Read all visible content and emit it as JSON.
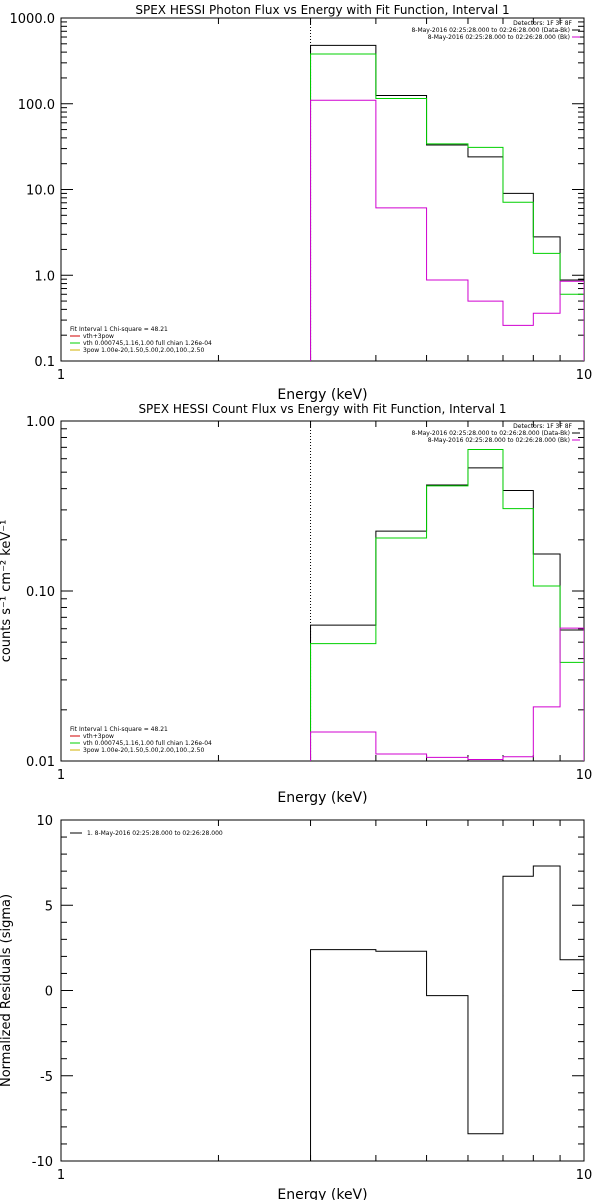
{
  "chart_data": [
    {
      "type": "line",
      "title": "SPEX HESSI Photon Flux vs Energy with Fit Function, Interval 1",
      "xlabel": "Energy (keV)",
      "ylabel": "",
      "xscale": "log",
      "yscale": "log",
      "xlim": [
        1,
        10
      ],
      "ylim": [
        0.1,
        1000
      ],
      "xticks": [
        "1",
        "10"
      ],
      "yticks": [
        "1000.0",
        "100.0",
        "10.0",
        "1.0",
        "0.1"
      ],
      "edges": [
        3,
        4,
        5,
        6,
        7,
        8,
        9,
        10
      ],
      "top_legend": {
        "header": "Detectors: 1F 3F 8F",
        "entries": [
          {
            "label": "8-May-2016 02:25:28.000 to 02:26:28.000 (Data-Bk)",
            "color": "#000000"
          },
          {
            "label": "8-May-2016 02:25:28.000 to 02:26:28.000 (Bk)",
            "color": "#d000d0"
          }
        ]
      },
      "fit_legend": {
        "header": "Fit Interval  1   Chi-square = 48.21",
        "entries": [
          {
            "label": "vth+3pow",
            "color": "#d00000"
          },
          {
            "label": "vth 0.000745,1.16,1.00   full chian 1.26e-04",
            "color": "#00d000"
          },
          {
            "label": "3pow 1.00e-20,1.50,5.00,2.00,100.,2.50",
            "color": "#d0b000"
          }
        ]
      },
      "vline_x": 3,
      "series": [
        {
          "color": "#000000",
          "values": [
            480,
            125,
            33,
            24,
            9,
            2.8,
            0.88
          ]
        },
        {
          "color": "#00d000",
          "values": [
            380,
            115,
            34,
            31,
            7.1,
            1.8,
            0.6
          ]
        },
        {
          "color": "#d000d0",
          "values": [
            110,
            6.1,
            0.88,
            0.5,
            0.26,
            0.36,
            0.85
          ]
        }
      ]
    },
    {
      "type": "line",
      "title": "SPEX HESSI Count Flux vs Energy with Fit Function, Interval 1",
      "xlabel": "Energy (keV)",
      "ylabel": "counts s⁻¹ cm⁻² keV⁻¹",
      "xscale": "log",
      "yscale": "log",
      "xlim": [
        1,
        10
      ],
      "ylim": [
        0.01,
        1
      ],
      "xticks": [
        "1",
        "10"
      ],
      "yticks": [
        "1.00",
        "0.10",
        "0.01"
      ],
      "edges": [
        3,
        4,
        5,
        6,
        7,
        8,
        9,
        10
      ],
      "top_legend": {
        "header": "Detectors: 1F 3F 8F",
        "entries": [
          {
            "label": "8-May-2016 02:25:28.000 to 02:26:28.000 (Data-Bk)",
            "color": "#000000"
          },
          {
            "label": "8-May-2016 02:25:28.000 to 02:26:28.000 (Bk)",
            "color": "#d000d0"
          }
        ]
      },
      "fit_legend": {
        "header": "Fit Interval  1   Chi-square = 48.21",
        "entries": [
          {
            "label": "vth+3pow",
            "color": "#d00000"
          },
          {
            "label": "vth 0.000745,1.16,1.00   full chian 1.26e-04",
            "color": "#00d000"
          },
          {
            "label": "3pow 1.00e-20,1.50,5.00,2.00,100.,2.50",
            "color": "#d0b000"
          }
        ]
      },
      "vline_x": 3,
      "series": [
        {
          "color": "#000000",
          "values": [
            0.063,
            0.225,
            0.42,
            0.53,
            0.39,
            0.165,
            0.059
          ]
        },
        {
          "color": "#00d000",
          "values": [
            0.049,
            0.205,
            0.415,
            0.68,
            0.305,
            0.107,
            0.038
          ]
        },
        {
          "color": "#d000d0",
          "values": [
            0.0148,
            0.011,
            0.0105,
            0.0102,
            0.0106,
            0.0208,
            0.0605
          ]
        }
      ]
    },
    {
      "type": "line",
      "title": "",
      "xlabel": "Energy (keV)",
      "ylabel": "Normalized Residuals (sigma)",
      "xscale": "log",
      "yscale": "linear",
      "xlim": [
        1,
        10
      ],
      "ylim": [
        -10,
        10
      ],
      "xticks": [
        "1",
        "10"
      ],
      "yticks": [
        "10",
        "5",
        "0",
        "-5",
        "-10"
      ],
      "edges": [
        3,
        4,
        5,
        6,
        7,
        8,
        9,
        10
      ],
      "top_legend": {
        "header": "",
        "entries": [
          {
            "label": "1.  8-May-2016 02:25:28.000 to 02:26:28.000",
            "color": "#000000"
          }
        ]
      },
      "series": [
        {
          "color": "#000000",
          "values": [
            2.4,
            2.3,
            -0.3,
            -8.4,
            6.7,
            7.3,
            1.8
          ]
        }
      ]
    }
  ]
}
